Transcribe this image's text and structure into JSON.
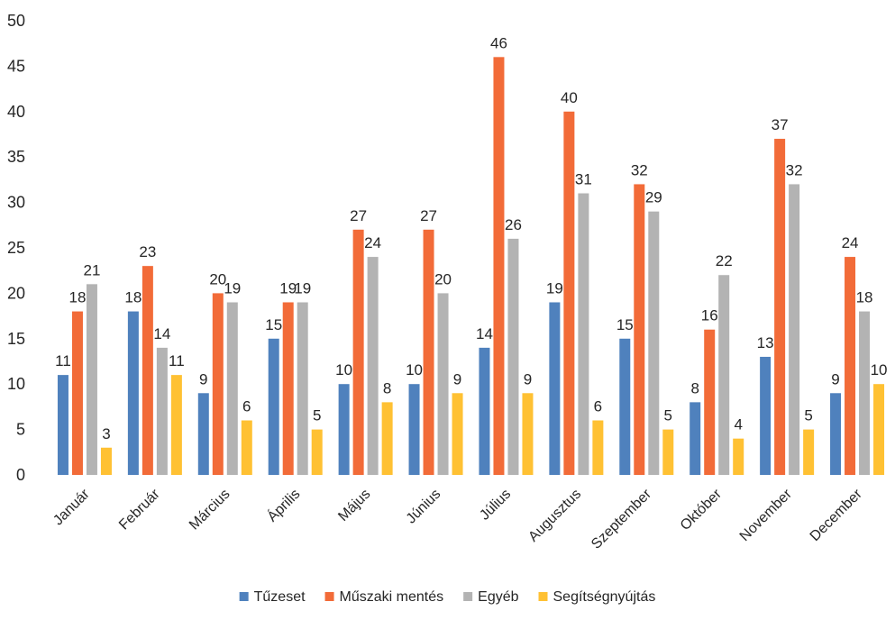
{
  "chart_data": {
    "type": "bar",
    "title": "",
    "xlabel": "",
    "ylabel": "",
    "ylim": [
      0,
      50
    ],
    "yticks": [
      0,
      5,
      10,
      15,
      20,
      25,
      30,
      35,
      40,
      45,
      50
    ],
    "grid": false,
    "legend_position": "bottom",
    "categories": [
      "Január",
      "Február",
      "Március",
      "Április",
      "Május",
      "Június",
      "Július",
      "Augusztus",
      "Szeptember",
      "Október",
      "November",
      "December"
    ],
    "series": [
      {
        "name": "Tűzeset",
        "color": "#4f81bd",
        "values": [
          11,
          18,
          9,
          15,
          10,
          10,
          14,
          19,
          15,
          8,
          13,
          9
        ],
        "labels": [
          "11",
          "18",
          "9",
          "15",
          "10",
          "10",
          "14",
          "19",
          "15",
          "8",
          "13",
          "9"
        ]
      },
      {
        "name": "Műszaki mentés",
        "color": "#f26b38",
        "values": [
          18,
          23,
          20,
          19,
          27,
          27,
          46,
          40,
          32,
          16,
          37,
          24
        ],
        "labels": [
          "18",
          "23",
          "20",
          "19",
          "27",
          "27",
          "46",
          "40",
          "32",
          "16",
          "37",
          "24"
        ]
      },
      {
        "name": "Egyéb",
        "color": "#b3b3b3",
        "values": [
          21,
          14,
          19,
          19,
          24,
          20,
          26,
          31,
          29,
          22,
          32,
          18
        ],
        "labels": [
          "21",
          "14",
          "19",
          "19",
          "24",
          "20",
          "26",
          "31",
          "29",
          "22",
          "32",
          "18"
        ]
      },
      {
        "name": "Segítségnyújtás",
        "color": "#ffc133",
        "values": [
          3,
          11,
          6,
          5,
          8,
          9,
          9,
          6,
          5,
          4,
          5,
          10
        ],
        "labels": [
          "3",
          "11",
          "6",
          "5",
          "8",
          "9",
          "9",
          "6",
          "5",
          "4",
          "5",
          "10"
        ]
      }
    ]
  }
}
